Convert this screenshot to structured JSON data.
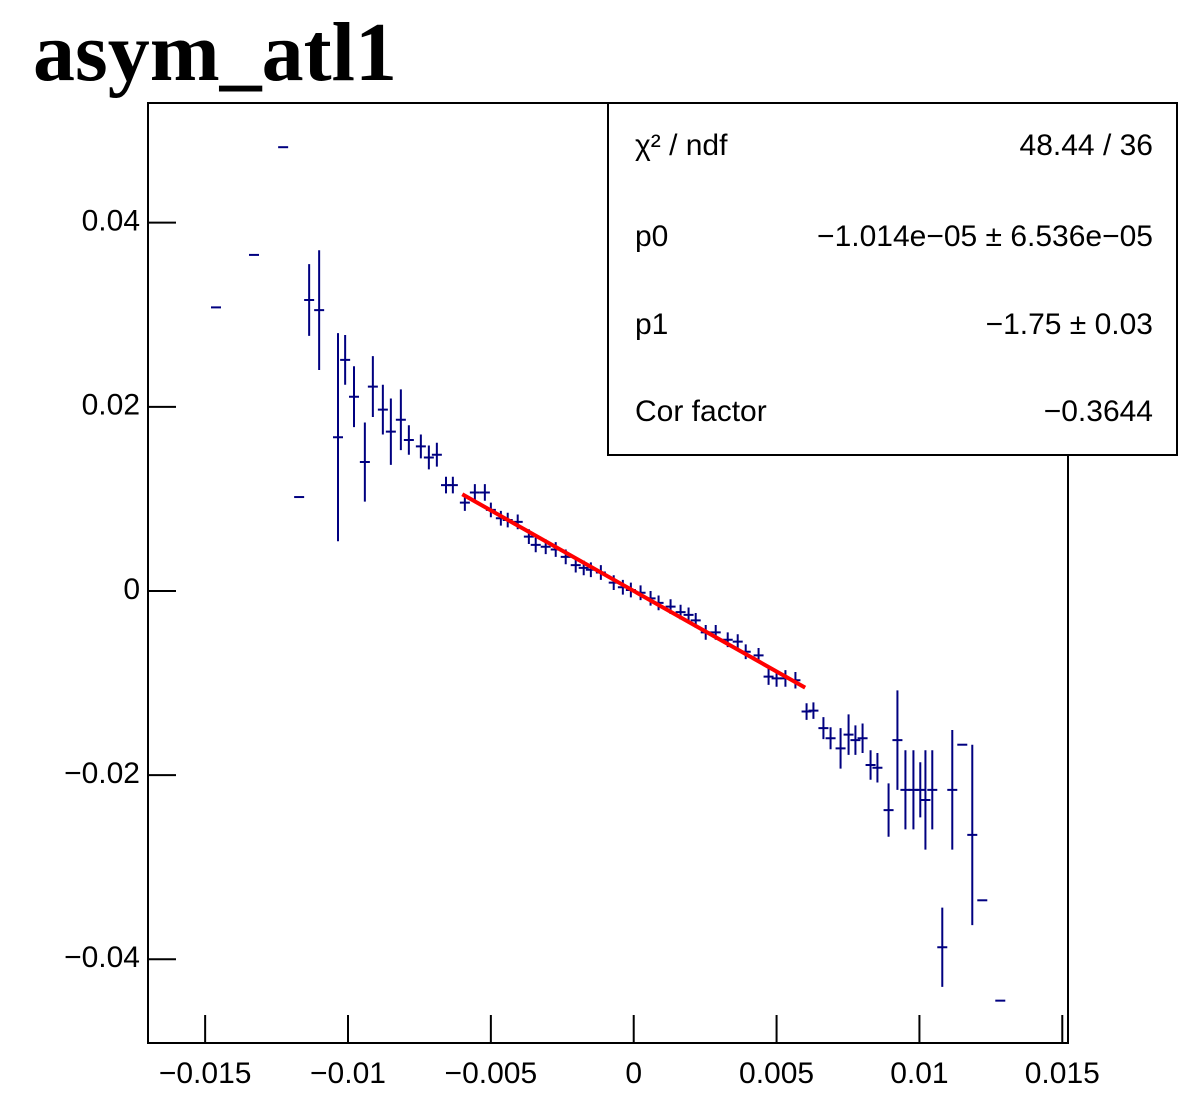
{
  "chart_data": {
    "type": "scatter",
    "title": "asym_atl1",
    "xlim": [
      -0.017,
      0.0152
    ],
    "ylim": [
      -0.0491,
      0.053
    ],
    "xticks": [
      {
        "value": -0.015,
        "label": "−0.015"
      },
      {
        "value": -0.01,
        "label": "−0.01"
      },
      {
        "value": -0.005,
        "label": "−0.005"
      },
      0,
      0.005,
      0.01,
      0.015
    ],
    "yticks": [
      {
        "value": -0.04,
        "label": "−0.04"
      },
      {
        "value": -0.02,
        "label": "−0.02"
      },
      0,
      0.02,
      0.04
    ],
    "series": [
      {
        "color": "#000080",
        "x": [
          -0.01462,
          -0.01329,
          -0.01227,
          -0.01171,
          -0.01136,
          -0.01101,
          -0.01035,
          -0.0101,
          -0.00979,
          -0.00941,
          -0.00913,
          -0.00878,
          -0.0085,
          -0.00815,
          -0.00787,
          -0.00745,
          -0.00717,
          -0.00689,
          -0.00657,
          -0.00633,
          -0.00591,
          -0.00556,
          -0.00521,
          -0.005,
          -0.00465,
          -0.00441,
          -0.00406,
          -0.00367,
          -0.00343,
          -0.00308,
          -0.00273,
          -0.00238,
          -0.00203,
          -0.00175,
          -0.0015,
          -0.00115,
          -0.0007,
          -0.00038,
          -0.0001,
          0.00024,
          0.00059,
          0.00087,
          0.00129,
          0.00164,
          0.00192,
          0.00217,
          0.00252,
          0.00287,
          0.00329,
          0.00364,
          0.00392,
          0.00437,
          0.00472,
          0.005,
          0.00531,
          0.00566,
          0.00605,
          0.00629,
          0.00664,
          0.00689,
          0.00724,
          0.00752,
          0.00776,
          0.00801,
          0.00829,
          0.00853,
          0.00892,
          0.00923,
          0.00951,
          0.00979,
          0.01003,
          0.01021,
          0.01045,
          0.0108,
          0.01115,
          0.0115,
          0.01185,
          0.0122,
          0.01283
        ],
        "values": [
          0.0308,
          0.0365,
          0.0482,
          0.0102,
          0.0316,
          0.0305,
          0.0167,
          0.0251,
          0.0211,
          0.014,
          0.0222,
          0.0197,
          0.0173,
          0.0186,
          0.0164,
          0.0157,
          0.0145,
          0.0148,
          0.0115,
          0.0115,
          0.0096,
          0.0107,
          0.0107,
          0.0088,
          0.0079,
          0.0077,
          0.0075,
          0.0059,
          0.005,
          0.0048,
          0.0045,
          0.0037,
          0.0028,
          0.0025,
          0.0023,
          0.002,
          0.0009,
          0.0004,
          0.0001,
          -0.0002,
          -0.0008,
          -0.0013,
          -0.0017,
          -0.0023,
          -0.0026,
          -0.0032,
          -0.0045,
          -0.0045,
          -0.0053,
          -0.0055,
          -0.0066,
          -0.007,
          -0.0093,
          -0.0095,
          -0.0095,
          -0.0097,
          -0.0131,
          -0.013,
          -0.0149,
          -0.016,
          -0.0171,
          -0.0156,
          -0.0162,
          -0.016,
          -0.0189,
          -0.0192,
          -0.0238,
          -0.0162,
          -0.0216,
          -0.0216,
          -0.0216,
          -0.0227,
          -0.0216,
          -0.0387,
          -0.0216,
          -0.0167,
          -0.0265,
          -0.0336,
          -0.0445
        ],
        "errors": [
          0,
          0,
          0,
          0,
          0.0039,
          0.0065,
          0.0113,
          0.0027,
          0.0033,
          0.0043,
          0.0033,
          0.0027,
          0.0036,
          0.0033,
          0.0016,
          0.0013,
          0.0013,
          0.0013,
          0.0009,
          0.0009,
          0.0009,
          0.0009,
          0.0009,
          0.0008,
          0.0008,
          0.0008,
          0.0008,
          0.0008,
          0.0008,
          0.0008,
          0.0008,
          0.0008,
          0.0008,
          0.0008,
          0.0008,
          0.0008,
          0.0008,
          0.0008,
          0.0008,
          0.0008,
          0.0008,
          0.0008,
          0.0008,
          0.0008,
          0.0008,
          0.0008,
          0.0008,
          0.0008,
          0.0008,
          0.0008,
          0.0008,
          0.0008,
          0.0009,
          0.0009,
          0.0009,
          0.0009,
          0.0009,
          0.0009,
          0.0012,
          0.0012,
          0.0022,
          0.0022,
          0.0016,
          0.0016,
          0.0016,
          0.0016,
          0.0029,
          0.0054,
          0.0043,
          0.0043,
          0.003,
          0.0054,
          0.0043,
          0.0043,
          0.0065,
          0,
          0.0098,
          0,
          0
        ]
      }
    ],
    "fit": {
      "color": "#ff0000",
      "x": [
        -0.006,
        0.006
      ],
      "values": [
        0.0105,
        -0.0105
      ]
    },
    "stats": [
      {
        "label": "χ² / ndf",
        "value": "48.44 / 36"
      },
      {
        "label": "p0",
        "value": "−1.014e−05 ± 6.536e−05"
      },
      {
        "label": "p1",
        "value": "−1.75 ± 0.03"
      },
      {
        "label": "Cor factor",
        "value": "−0.3644"
      }
    ]
  }
}
